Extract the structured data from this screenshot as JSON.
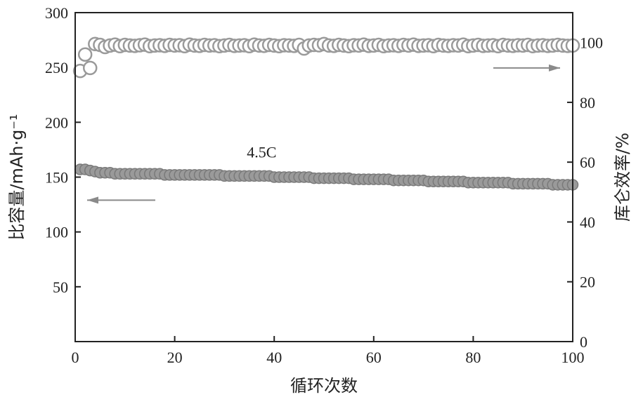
{
  "chart_data": {
    "type": "scatter",
    "annotation": "4.5C",
    "xlabel": "循环次数",
    "ylabel_left": "比容量/mAh·g⁻¹",
    "ylabel_right": "库仑效率/%",
    "xlim": [
      0,
      100
    ],
    "ylim_left": [
      0,
      300
    ],
    "ylim_right": [
      0,
      110
    ],
    "xticks": [
      "0",
      "20",
      "40",
      "60",
      "80",
      "100"
    ],
    "yticks_left": [
      "50",
      "100",
      "150",
      "200",
      "250",
      "300"
    ],
    "yticks_right": [
      "0",
      "20",
      "40",
      "60",
      "80",
      "100"
    ],
    "grid": false,
    "series": [
      {
        "role": "specific-capacity",
        "axis": "left",
        "marker": "filled-circle",
        "color": "#9a9a9a",
        "x": [
          1,
          2,
          3,
          4,
          5,
          6,
          7,
          8,
          9,
          10,
          11,
          12,
          13,
          14,
          15,
          16,
          17,
          18,
          19,
          20,
          21,
          22,
          23,
          24,
          25,
          26,
          27,
          28,
          29,
          30,
          31,
          32,
          33,
          34,
          35,
          36,
          37,
          38,
          39,
          40,
          41,
          42,
          43,
          44,
          45,
          46,
          47,
          48,
          49,
          50,
          51,
          52,
          53,
          54,
          55,
          56,
          57,
          58,
          59,
          60,
          61,
          62,
          63,
          64,
          65,
          66,
          67,
          68,
          69,
          70,
          71,
          72,
          73,
          74,
          75,
          76,
          77,
          78,
          79,
          80,
          81,
          82,
          83,
          84,
          85,
          86,
          87,
          88,
          89,
          90,
          91,
          92,
          93,
          94,
          95,
          96,
          97,
          98,
          99,
          100
        ],
        "values": [
          157,
          157,
          156,
          155,
          154,
          154,
          154,
          153,
          153,
          153,
          153,
          153,
          153,
          153,
          153,
          153,
          153,
          152,
          152,
          152,
          152,
          152,
          152,
          152,
          152,
          152,
          152,
          152,
          152,
          151,
          151,
          151,
          151,
          151,
          151,
          151,
          151,
          151,
          151,
          150,
          150,
          150,
          150,
          150,
          150,
          150,
          150,
          149,
          149,
          149,
          149,
          149,
          149,
          149,
          149,
          148,
          148,
          148,
          148,
          148,
          148,
          148,
          148,
          147,
          147,
          147,
          147,
          147,
          147,
          147,
          146,
          146,
          146,
          146,
          146,
          146,
          146,
          146,
          145,
          145,
          145,
          145,
          145,
          145,
          145,
          145,
          145,
          144,
          144,
          144,
          144,
          144,
          144,
          144,
          144,
          143,
          143,
          143,
          143,
          143
        ]
      },
      {
        "role": "coulombic-efficiency",
        "axis": "right",
        "marker": "open-circle",
        "color": "#9a9a9a",
        "arrow": "right",
        "x": [
          1,
          2,
          3,
          4,
          5,
          6,
          7,
          8,
          9,
          10,
          11,
          12,
          13,
          14,
          15,
          16,
          17,
          18,
          19,
          20,
          21,
          22,
          23,
          24,
          25,
          26,
          27,
          28,
          29,
          30,
          31,
          32,
          33,
          34,
          35,
          36,
          37,
          38,
          39,
          40,
          41,
          42,
          43,
          44,
          45,
          46,
          47,
          48,
          49,
          50,
          51,
          52,
          53,
          54,
          55,
          56,
          57,
          58,
          59,
          60,
          61,
          62,
          63,
          64,
          65,
          66,
          67,
          68,
          69,
          70,
          71,
          72,
          73,
          74,
          75,
          76,
          77,
          78,
          79,
          80,
          81,
          82,
          83,
          84,
          85,
          86,
          87,
          88,
          89,
          90,
          91,
          92,
          93,
          94,
          95,
          96,
          97,
          98,
          99,
          100
        ],
        "values": [
          90.5,
          96.0,
          91.5,
          99.5,
          99.2,
          98.5,
          99.0,
          99.3,
          98.8,
          99.2,
          99.0,
          98.9,
          99.1,
          99.3,
          98.8,
          99.0,
          99.1,
          98.9,
          99.2,
          99.0,
          99.1,
          98.8,
          99.3,
          99.0,
          98.9,
          99.2,
          99.0,
          99.1,
          98.8,
          99.0,
          99.2,
          98.9,
          99.0,
          99.1,
          98.8,
          99.3,
          99.0,
          98.9,
          99.2,
          99.0,
          98.8,
          99.1,
          99.0,
          98.9,
          99.2,
          98.0,
          99.0,
          99.2,
          99.1,
          99.5,
          99.0,
          98.9,
          99.2,
          99.0,
          98.8,
          99.1,
          99.0,
          99.3,
          98.9,
          99.0,
          99.2,
          98.8,
          99.0,
          99.1,
          98.9,
          99.2,
          99.0,
          99.3,
          98.9,
          99.0,
          99.1,
          98.8,
          99.2,
          99.0,
          98.9,
          99.1,
          99.0,
          99.3,
          98.8,
          99.0,
          99.2,
          98.9,
          99.0,
          99.1,
          98.8,
          99.2,
          99.0,
          98.9,
          99.1,
          99.0,
          99.2,
          98.8,
          99.0,
          99.1,
          98.9,
          99.0,
          99.2,
          99.0,
          98.9,
          99.0
        ]
      }
    ]
  }
}
